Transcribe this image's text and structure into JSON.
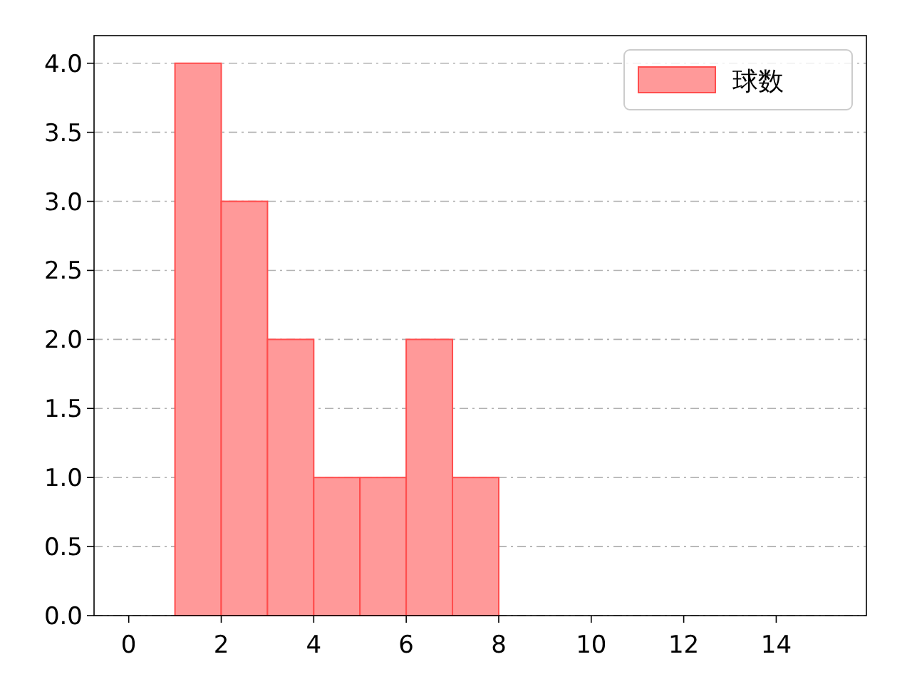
{
  "chart_data": {
    "type": "histogram",
    "bins": [
      1,
      2,
      3,
      4,
      5,
      6,
      7,
      8
    ],
    "series": [
      {
        "name": "球数",
        "color": "#ff9999",
        "values": [
          4,
          3,
          2,
          1,
          1,
          2,
          1
        ]
      }
    ],
    "xlim": [
      -0.75,
      15.95
    ],
    "xticks": [
      0,
      2,
      4,
      6,
      8,
      10,
      12,
      14
    ],
    "ylim": [
      0,
      4.2
    ],
    "yticks": [
      {
        "value": 0,
        "label": "0.0"
      },
      {
        "value": 0.5,
        "label": "0.5"
      },
      {
        "value": 1,
        "label": "1.0"
      },
      {
        "value": 1.5,
        "label": "1.5"
      },
      {
        "value": 2,
        "label": "2.0"
      },
      {
        "value": 2.5,
        "label": "2.5"
      },
      {
        "value": 3,
        "label": "3.0"
      },
      {
        "value": 3.5,
        "label": "3.5"
      },
      {
        "value": 4,
        "label": "4.0"
      }
    ],
    "grid": "y",
    "legend": "top right"
  }
}
